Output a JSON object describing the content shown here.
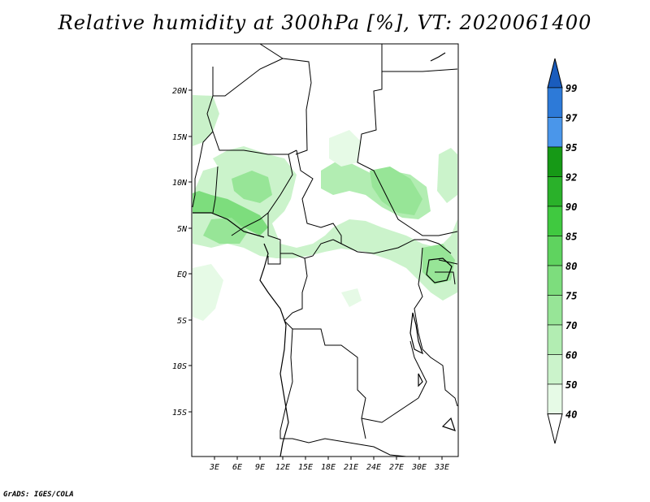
{
  "title": "Relative humidity at 300hPa [%], VT: 2020061400",
  "credit": "GrADS: IGES/COLA",
  "map": {
    "lon_range": [
      0,
      35
    ],
    "lat_range": [
      -20,
      25
    ],
    "lon_ticks": [
      "3E",
      "6E",
      "9E",
      "12E",
      "15E",
      "18E",
      "21E",
      "24E",
      "27E",
      "30E",
      "33E"
    ],
    "lat_ticks": [
      "20N",
      "15N",
      "10N",
      "5N",
      "EQ",
      "5S",
      "10S",
      "15S"
    ]
  },
  "colorbar": {
    "labels": [
      "40",
      "50",
      "60",
      "70",
      "75",
      "80",
      "85",
      "90",
      "92",
      "95",
      "97",
      "99"
    ],
    "colors": [
      "#ffffff",
      "#e6fae6",
      "#cbf3cb",
      "#b2edb2",
      "#97e597",
      "#7ddd7d",
      "#5fd35f",
      "#40c940",
      "#2ab12a",
      "#169916",
      "#4a96ea",
      "#2d7ad8",
      "#1a5cbd"
    ]
  }
}
